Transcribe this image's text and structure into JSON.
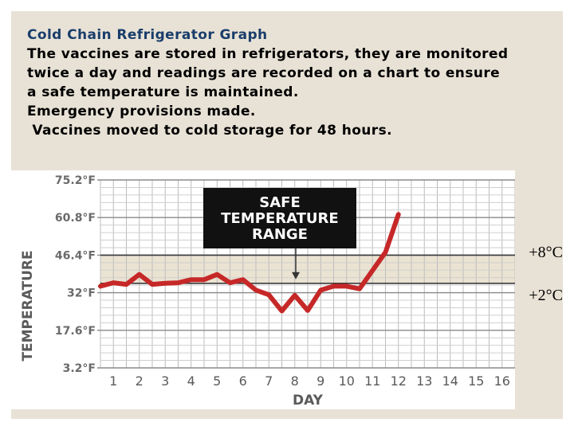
{
  "heading": {
    "title": "Cold Chain Refrigerator Graph",
    "lines": [
      "The vaccines are stored in refrigerators, they are monitored",
      "twice a day and readings are recorded on a chart to ensure",
      "a safe temperature is maintained.",
      "Emergency provisions made.",
      " Vaccines moved to cold storage for 48 hours."
    ]
  },
  "celsius_labels": {
    "upper": "+8°C",
    "lower": "+2°C"
  },
  "chart_data": {
    "type": "line",
    "title": "",
    "xlabel": "DAY",
    "ylabel": "TEMPERATURE",
    "x_ticks": [
      1,
      2,
      3,
      4,
      5,
      6,
      7,
      8,
      9,
      10,
      11,
      12,
      13,
      14,
      15,
      16
    ],
    "y_ticks": [
      3.2,
      17.6,
      32,
      46.4,
      60.8,
      75.2
    ],
    "y_tick_labels": [
      "3.2°F",
      "17.6°F",
      "32°F",
      "46.4°F",
      "60.8°F",
      "75.2°F"
    ],
    "xlim": [
      0.5,
      16.5
    ],
    "ylim": [
      3.2,
      75.2
    ],
    "grid": true,
    "safe_range": {
      "low": 35.6,
      "high": 46.4
    },
    "annotation": {
      "lines": [
        "SAFE",
        "TEMPERATURE",
        "RANGE"
      ],
      "points_to_day": 9
    },
    "series": [
      {
        "color": "#c62828",
        "x": [
          0.5,
          1,
          1.5,
          2,
          2.5,
          3,
          3.5,
          4,
          4.5,
          5,
          5.5,
          6,
          6.5,
          7,
          7.5,
          8,
          8.5,
          9,
          9.5,
          10,
          10.5,
          11,
          11.5,
          12
        ],
        "values": [
          34.5,
          35.8,
          35.2,
          39.0,
          35.2,
          35.6,
          35.8,
          37.0,
          37.0,
          39.0,
          35.8,
          37.0,
          33.0,
          31.2,
          25.0,
          31.0,
          25.2,
          33.0,
          34.5,
          34.5,
          33.5,
          40.5,
          47.5,
          62.0
        ]
      }
    ]
  }
}
